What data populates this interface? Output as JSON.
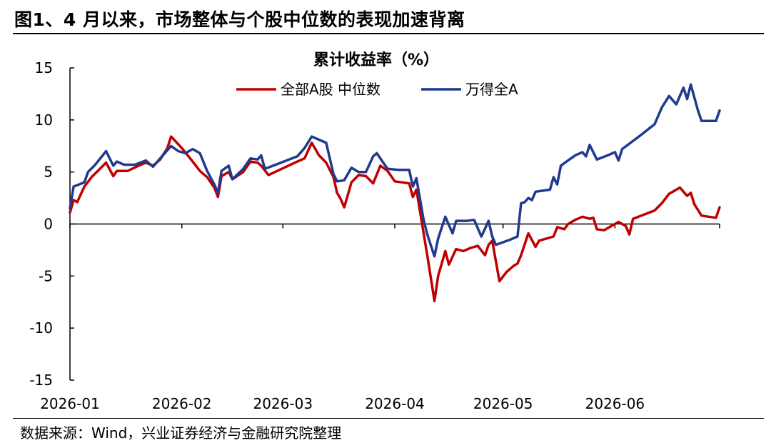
{
  "figure": {
    "title": "图1、4 月以来，市场整体与个股中位数的表现加速背离",
    "source": "数据来源：Wind，兴业证券经济与金融研究院整理"
  },
  "chart_data": {
    "type": "line",
    "title": "累计收益率（%）",
    "xlabel": "",
    "ylabel": "",
    "ylim": [
      -15,
      15
    ],
    "yticks": [
      15,
      10,
      5,
      0,
      -5,
      -10,
      -15
    ],
    "ytick_labels": [
      "15",
      "10",
      "5",
      "0",
      "-5",
      "-10",
      "-15"
    ],
    "xlim": [
      "2026-01-01",
      "2026-06-30"
    ],
    "xticks": [
      "2026-01-01",
      "2026-02-01",
      "2026-03-01",
      "2026-04-01",
      "2026-05-01",
      "2026-06-01"
    ],
    "xtick_labels": [
      "2026-01",
      "2026-02",
      "2026-03",
      "2026-04",
      "2026-05",
      "2026-06"
    ],
    "legend_position": "top-center",
    "grid": false,
    "series": [
      {
        "name": "全部A股 中位数",
        "color": "#C00000",
        "points": [
          [
            "2026-01-01",
            1.1
          ],
          [
            "2026-01-02",
            2.3
          ],
          [
            "2026-01-03",
            2.1
          ],
          [
            "2026-01-05",
            3.6
          ],
          [
            "2026-01-07",
            4.5
          ],
          [
            "2026-01-09",
            5.2
          ],
          [
            "2026-01-11",
            5.9
          ],
          [
            "2026-01-13",
            4.6
          ],
          [
            "2026-01-14",
            5.1
          ],
          [
            "2026-01-17",
            5.1
          ],
          [
            "2026-01-20",
            5.6
          ],
          [
            "2026-01-22",
            5.9
          ],
          [
            "2026-01-24",
            5.6
          ],
          [
            "2026-01-26",
            6.2
          ],
          [
            "2026-01-28",
            7.3
          ],
          [
            "2026-01-29",
            8.4
          ],
          [
            "2026-02-01",
            7.3
          ],
          [
            "2026-02-04",
            6.0
          ],
          [
            "2026-02-06",
            5.1
          ],
          [
            "2026-02-08",
            4.5
          ],
          [
            "2026-02-10",
            3.5
          ],
          [
            "2026-02-11",
            2.6
          ],
          [
            "2026-02-12",
            4.6
          ],
          [
            "2026-02-14",
            5.0
          ],
          [
            "2026-02-15",
            4.3
          ],
          [
            "2026-02-18",
            5.0
          ],
          [
            "2026-02-20",
            6.0
          ],
          [
            "2026-02-22",
            5.9
          ],
          [
            "2026-02-23",
            5.6
          ],
          [
            "2026-02-25",
            4.7
          ],
          [
            "2026-03-05",
            6.0
          ],
          [
            "2026-03-07",
            6.3
          ],
          [
            "2026-03-09",
            7.8
          ],
          [
            "2026-03-11",
            6.6
          ],
          [
            "2026-03-13",
            5.9
          ],
          [
            "2026-03-15",
            4.5
          ],
          [
            "2026-03-16",
            3.0
          ],
          [
            "2026-03-17",
            2.4
          ],
          [
            "2026-03-18",
            1.6
          ],
          [
            "2026-03-20",
            4.0
          ],
          [
            "2026-03-22",
            4.7
          ],
          [
            "2026-03-24",
            4.6
          ],
          [
            "2026-03-26",
            3.9
          ],
          [
            "2026-03-28",
            5.6
          ],
          [
            "2026-03-30",
            5.1
          ],
          [
            "2026-04-01",
            4.1
          ],
          [
            "2026-04-03",
            4.0
          ],
          [
            "2026-04-05",
            3.9
          ],
          [
            "2026-04-06",
            2.6
          ],
          [
            "2026-04-07",
            3.3
          ],
          [
            "2026-04-10",
            -3.0
          ],
          [
            "2026-04-12",
            -7.4
          ],
          [
            "2026-04-13",
            -5.0
          ],
          [
            "2026-04-15",
            -2.6
          ],
          [
            "2026-04-16",
            -3.9
          ],
          [
            "2026-04-18",
            -2.4
          ],
          [
            "2026-04-20",
            -2.6
          ],
          [
            "2026-04-22",
            -2.3
          ],
          [
            "2026-04-24",
            -2.1
          ],
          [
            "2026-04-26",
            -3.0
          ],
          [
            "2026-04-27",
            -2.0
          ],
          [
            "2026-04-28",
            -1.6
          ],
          [
            "2026-04-30",
            -5.5
          ],
          [
            "2026-05-02",
            -4.6
          ],
          [
            "2026-05-04",
            -4.0
          ],
          [
            "2026-05-05",
            -3.8
          ],
          [
            "2026-05-06",
            -3.0
          ],
          [
            "2026-05-08",
            -0.9
          ],
          [
            "2026-05-10",
            -2.2
          ],
          [
            "2026-05-11",
            -1.6
          ],
          [
            "2026-05-13",
            -1.4
          ],
          [
            "2026-05-15",
            -1.2
          ],
          [
            "2026-05-16",
            -0.3
          ],
          [
            "2026-05-18",
            -0.5
          ],
          [
            "2026-05-19",
            0.0
          ],
          [
            "2026-05-21",
            0.4
          ],
          [
            "2026-05-23",
            0.7
          ],
          [
            "2026-05-25",
            0.5
          ],
          [
            "2026-05-26",
            0.6
          ],
          [
            "2026-05-27",
            -0.5
          ],
          [
            "2026-05-29",
            -0.6
          ],
          [
            "2026-05-31",
            -0.2
          ],
          [
            "2026-06-02",
            0.2
          ],
          [
            "2026-06-04",
            -0.2
          ],
          [
            "2026-06-05",
            -1.0
          ],
          [
            "2026-06-06",
            0.5
          ],
          [
            "2026-06-12",
            1.3
          ],
          [
            "2026-06-14",
            2.0
          ],
          [
            "2026-06-16",
            2.9
          ],
          [
            "2026-06-19",
            3.5
          ],
          [
            "2026-06-21",
            2.7
          ],
          [
            "2026-06-22",
            3.0
          ],
          [
            "2026-06-23",
            1.9
          ],
          [
            "2026-06-25",
            0.8
          ],
          [
            "2026-06-29",
            0.6
          ],
          [
            "2026-06-30",
            1.6
          ]
        ]
      },
      {
        "name": "万得全A",
        "color": "#1F3A8F",
        "points": [
          [
            "2026-01-01",
            1.5
          ],
          [
            "2026-01-02",
            3.6
          ],
          [
            "2026-01-05",
            4.0
          ],
          [
            "2026-01-06",
            5.0
          ],
          [
            "2026-01-08",
            5.7
          ],
          [
            "2026-01-11",
            7.0
          ],
          [
            "2026-01-13",
            5.6
          ],
          [
            "2026-01-14",
            6.0
          ],
          [
            "2026-01-16",
            5.7
          ],
          [
            "2026-01-19",
            5.7
          ],
          [
            "2026-01-22",
            6.1
          ],
          [
            "2026-01-24",
            5.5
          ],
          [
            "2026-01-26",
            6.3
          ],
          [
            "2026-01-29",
            7.5
          ],
          [
            "2026-01-31",
            7.0
          ],
          [
            "2026-02-02",
            6.8
          ],
          [
            "2026-02-04",
            7.2
          ],
          [
            "2026-02-06",
            6.8
          ],
          [
            "2026-02-08",
            5.1
          ],
          [
            "2026-02-10",
            3.8
          ],
          [
            "2026-02-11",
            3.0
          ],
          [
            "2026-02-12",
            5.1
          ],
          [
            "2026-02-14",
            5.6
          ],
          [
            "2026-02-15",
            4.3
          ],
          [
            "2026-02-18",
            5.3
          ],
          [
            "2026-02-20",
            6.3
          ],
          [
            "2026-02-22",
            6.2
          ],
          [
            "2026-02-23",
            6.6
          ],
          [
            "2026-02-24",
            5.3
          ],
          [
            "2026-03-05",
            6.5
          ],
          [
            "2026-03-07",
            7.3
          ],
          [
            "2026-03-09",
            8.4
          ],
          [
            "2026-03-11",
            8.1
          ],
          [
            "2026-03-13",
            7.8
          ],
          [
            "2026-03-14",
            6.3
          ],
          [
            "2026-03-15",
            4.8
          ],
          [
            "2026-03-16",
            4.1
          ],
          [
            "2026-03-18",
            4.2
          ],
          [
            "2026-03-20",
            5.4
          ],
          [
            "2026-03-22",
            5.0
          ],
          [
            "2026-03-24",
            5.0
          ],
          [
            "2026-03-26",
            6.5
          ],
          [
            "2026-03-27",
            6.8
          ],
          [
            "2026-03-28",
            6.3
          ],
          [
            "2026-03-30",
            5.3
          ],
          [
            "2026-04-02",
            5.2
          ],
          [
            "2026-04-05",
            5.2
          ],
          [
            "2026-04-06",
            3.6
          ],
          [
            "2026-04-07",
            4.4
          ],
          [
            "2026-04-09",
            0.4
          ],
          [
            "2026-04-10",
            -1.0
          ],
          [
            "2026-04-12",
            -3.1
          ],
          [
            "2026-04-13",
            -1.4
          ],
          [
            "2026-04-15",
            0.7
          ],
          [
            "2026-04-17",
            -0.9
          ],
          [
            "2026-04-18",
            0.3
          ],
          [
            "2026-04-21",
            0.3
          ],
          [
            "2026-04-23",
            0.4
          ],
          [
            "2026-04-25",
            -1.2
          ],
          [
            "2026-04-27",
            0.3
          ],
          [
            "2026-04-28",
            -1.2
          ],
          [
            "2026-04-29",
            -2.0
          ],
          [
            "2026-05-03",
            -1.5
          ],
          [
            "2026-05-05",
            -1.2
          ],
          [
            "2026-05-06",
            2.0
          ],
          [
            "2026-05-07",
            2.1
          ],
          [
            "2026-05-08",
            2.5
          ],
          [
            "2026-05-09",
            2.3
          ],
          [
            "2026-05-10",
            3.1
          ],
          [
            "2026-05-12",
            3.2
          ],
          [
            "2026-05-14",
            3.3
          ],
          [
            "2026-05-15",
            4.5
          ],
          [
            "2026-05-16",
            3.8
          ],
          [
            "2026-05-17",
            5.6
          ],
          [
            "2026-05-19",
            6.1
          ],
          [
            "2026-05-21",
            6.6
          ],
          [
            "2026-05-23",
            6.9
          ],
          [
            "2026-05-24",
            6.5
          ],
          [
            "2026-05-25",
            7.6
          ],
          [
            "2026-05-27",
            6.2
          ],
          [
            "2026-05-30",
            6.6
          ],
          [
            "2026-06-01",
            6.9
          ],
          [
            "2026-06-02",
            6.1
          ],
          [
            "2026-06-03",
            7.2
          ],
          [
            "2026-06-08",
            8.5
          ],
          [
            "2026-06-12",
            9.6
          ],
          [
            "2026-06-14",
            11.2
          ],
          [
            "2026-06-16",
            12.3
          ],
          [
            "2026-06-18",
            11.5
          ],
          [
            "2026-06-20",
            13.1
          ],
          [
            "2026-06-21",
            12.0
          ],
          [
            "2026-06-22",
            13.4
          ],
          [
            "2026-06-24",
            10.9
          ],
          [
            "2026-06-25",
            9.9
          ],
          [
            "2026-06-29",
            9.9
          ],
          [
            "2026-06-30",
            10.9
          ]
        ]
      }
    ]
  }
}
